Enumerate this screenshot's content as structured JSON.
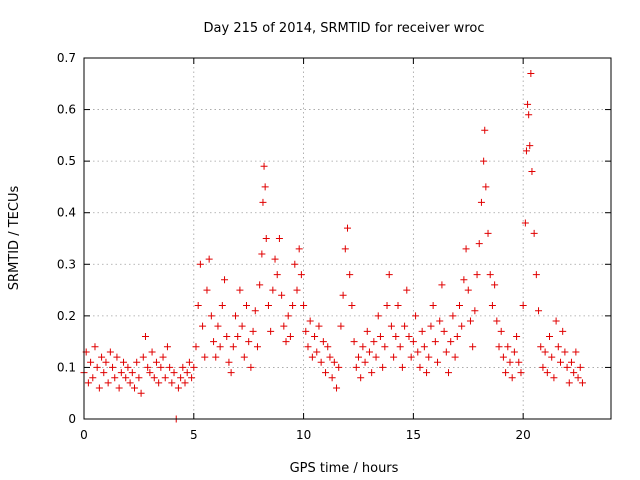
{
  "chart_data": {
    "type": "scatter",
    "title": "Day 215 of 2014, SRMTID for receiver wroc",
    "xlabel": "GPS time / hours",
    "ylabel": "SRMTID / TECUs",
    "xlim": [
      0,
      24
    ],
    "ylim": [
      0,
      0.7
    ],
    "xticks": [
      0,
      5,
      10,
      15,
      20
    ],
    "xtick_labels": [
      "0",
      "5",
      "10",
      "15",
      "20"
    ],
    "yticks": [
      0,
      0.1,
      0.2,
      0.3,
      0.4,
      0.5,
      0.6,
      0.7
    ],
    "ytick_labels": [
      "0",
      "0.1",
      "0.2",
      "0.3",
      "0.4",
      "0.5",
      "0.6",
      "0.7"
    ],
    "grid": true,
    "marker": "plus",
    "color": "#e00000",
    "series": [
      {
        "name": "SRMTID",
        "points": [
          [
            0.0,
            0.09
          ],
          [
            0.1,
            0.13
          ],
          [
            0.2,
            0.07
          ],
          [
            0.3,
            0.11
          ],
          [
            0.4,
            0.08
          ],
          [
            0.5,
            0.14
          ],
          [
            0.6,
            0.1
          ],
          [
            0.7,
            0.06
          ],
          [
            0.8,
            0.12
          ],
          [
            0.9,
            0.09
          ],
          [
            1.0,
            0.11
          ],
          [
            1.1,
            0.07
          ],
          [
            1.2,
            0.13
          ],
          [
            1.3,
            0.1
          ],
          [
            1.4,
            0.08
          ],
          [
            1.5,
            0.12
          ],
          [
            1.6,
            0.06
          ],
          [
            1.7,
            0.09
          ],
          [
            1.8,
            0.11
          ],
          [
            1.9,
            0.08
          ],
          [
            2.0,
            0.1
          ],
          [
            2.1,
            0.07
          ],
          [
            2.2,
            0.09
          ],
          [
            2.3,
            0.06
          ],
          [
            2.4,
            0.11
          ],
          [
            2.5,
            0.08
          ],
          [
            2.6,
            0.05
          ],
          [
            2.7,
            0.12
          ],
          [
            2.8,
            0.16
          ],
          [
            2.9,
            0.1
          ],
          [
            3.0,
            0.09
          ],
          [
            3.1,
            0.13
          ],
          [
            3.2,
            0.08
          ],
          [
            3.3,
            0.11
          ],
          [
            3.4,
            0.07
          ],
          [
            3.5,
            0.1
          ],
          [
            3.6,
            0.12
          ],
          [
            3.7,
            0.08
          ],
          [
            3.8,
            0.14
          ],
          [
            3.9,
            0.1
          ],
          [
            4.0,
            0.07
          ],
          [
            4.1,
            0.09
          ],
          [
            4.2,
            0.0
          ],
          [
            4.3,
            0.06
          ],
          [
            4.4,
            0.08
          ],
          [
            4.5,
            0.1
          ],
          [
            4.6,
            0.07
          ],
          [
            4.7,
            0.09
          ],
          [
            4.8,
            0.11
          ],
          [
            4.9,
            0.08
          ],
          [
            5.0,
            0.1
          ],
          [
            5.1,
            0.14
          ],
          [
            5.2,
            0.22
          ],
          [
            5.3,
            0.3
          ],
          [
            5.4,
            0.18
          ],
          [
            5.5,
            0.12
          ],
          [
            5.6,
            0.25
          ],
          [
            5.7,
            0.31
          ],
          [
            5.8,
            0.2
          ],
          [
            5.9,
            0.15
          ],
          [
            6.0,
            0.12
          ],
          [
            6.1,
            0.18
          ],
          [
            6.2,
            0.14
          ],
          [
            6.3,
            0.22
          ],
          [
            6.4,
            0.27
          ],
          [
            6.5,
            0.16
          ],
          [
            6.6,
            0.11
          ],
          [
            6.7,
            0.09
          ],
          [
            6.8,
            0.14
          ],
          [
            6.9,
            0.2
          ],
          [
            7.0,
            0.16
          ],
          [
            7.1,
            0.25
          ],
          [
            7.2,
            0.18
          ],
          [
            7.3,
            0.12
          ],
          [
            7.4,
            0.22
          ],
          [
            7.5,
            0.15
          ],
          [
            7.6,
            0.1
          ],
          [
            7.7,
            0.17
          ],
          [
            7.8,
            0.21
          ],
          [
            7.9,
            0.14
          ],
          [
            8.0,
            0.26
          ],
          [
            8.1,
            0.32
          ],
          [
            8.15,
            0.42
          ],
          [
            8.2,
            0.49
          ],
          [
            8.25,
            0.45
          ],
          [
            8.3,
            0.35
          ],
          [
            8.4,
            0.22
          ],
          [
            8.5,
            0.17
          ],
          [
            8.6,
            0.25
          ],
          [
            8.7,
            0.31
          ],
          [
            8.8,
            0.28
          ],
          [
            8.9,
            0.35
          ],
          [
            9.0,
            0.24
          ],
          [
            9.1,
            0.18
          ],
          [
            9.2,
            0.15
          ],
          [
            9.3,
            0.2
          ],
          [
            9.4,
            0.16
          ],
          [
            9.5,
            0.22
          ],
          [
            9.6,
            0.3
          ],
          [
            9.7,
            0.25
          ],
          [
            9.8,
            0.33
          ],
          [
            9.9,
            0.28
          ],
          [
            10.0,
            0.22
          ],
          [
            10.1,
            0.17
          ],
          [
            10.2,
            0.14
          ],
          [
            10.3,
            0.19
          ],
          [
            10.4,
            0.12
          ],
          [
            10.5,
            0.16
          ],
          [
            10.6,
            0.13
          ],
          [
            10.7,
            0.18
          ],
          [
            10.8,
            0.11
          ],
          [
            10.9,
            0.15
          ],
          [
            11.0,
            0.09
          ],
          [
            11.1,
            0.14
          ],
          [
            11.2,
            0.12
          ],
          [
            11.3,
            0.08
          ],
          [
            11.4,
            0.11
          ],
          [
            11.5,
            0.06
          ],
          [
            11.6,
            0.1
          ],
          [
            11.7,
            0.18
          ],
          [
            11.8,
            0.24
          ],
          [
            11.9,
            0.33
          ],
          [
            12.0,
            0.37
          ],
          [
            12.1,
            0.28
          ],
          [
            12.2,
            0.22
          ],
          [
            12.3,
            0.15
          ],
          [
            12.4,
            0.1
          ],
          [
            12.5,
            0.12
          ],
          [
            12.6,
            0.08
          ],
          [
            12.7,
            0.14
          ],
          [
            12.8,
            0.11
          ],
          [
            12.9,
            0.17
          ],
          [
            13.0,
            0.13
          ],
          [
            13.1,
            0.09
          ],
          [
            13.2,
            0.15
          ],
          [
            13.3,
            0.12
          ],
          [
            13.4,
            0.2
          ],
          [
            13.5,
            0.16
          ],
          [
            13.6,
            0.1
          ],
          [
            13.7,
            0.14
          ],
          [
            13.8,
            0.22
          ],
          [
            13.9,
            0.28
          ],
          [
            14.0,
            0.18
          ],
          [
            14.1,
            0.12
          ],
          [
            14.2,
            0.16
          ],
          [
            14.3,
            0.22
          ],
          [
            14.4,
            0.14
          ],
          [
            14.5,
            0.1
          ],
          [
            14.6,
            0.18
          ],
          [
            14.7,
            0.25
          ],
          [
            14.8,
            0.16
          ],
          [
            14.9,
            0.12
          ],
          [
            15.0,
            0.15
          ],
          [
            15.1,
            0.2
          ],
          [
            15.2,
            0.13
          ],
          [
            15.3,
            0.1
          ],
          [
            15.4,
            0.17
          ],
          [
            15.5,
            0.14
          ],
          [
            15.6,
            0.09
          ],
          [
            15.7,
            0.12
          ],
          [
            15.8,
            0.18
          ],
          [
            15.9,
            0.22
          ],
          [
            16.0,
            0.15
          ],
          [
            16.1,
            0.11
          ],
          [
            16.2,
            0.19
          ],
          [
            16.3,
            0.26
          ],
          [
            16.4,
            0.17
          ],
          [
            16.5,
            0.13
          ],
          [
            16.6,
            0.09
          ],
          [
            16.7,
            0.15
          ],
          [
            16.8,
            0.2
          ],
          [
            16.9,
            0.12
          ],
          [
            17.0,
            0.16
          ],
          [
            17.1,
            0.22
          ],
          [
            17.2,
            0.18
          ],
          [
            17.3,
            0.27
          ],
          [
            17.4,
            0.33
          ],
          [
            17.5,
            0.25
          ],
          [
            17.6,
            0.19
          ],
          [
            17.7,
            0.14
          ],
          [
            17.8,
            0.21
          ],
          [
            17.9,
            0.28
          ],
          [
            18.0,
            0.34
          ],
          [
            18.1,
            0.42
          ],
          [
            18.2,
            0.5
          ],
          [
            18.25,
            0.56
          ],
          [
            18.3,
            0.45
          ],
          [
            18.4,
            0.36
          ],
          [
            18.5,
            0.28
          ],
          [
            18.6,
            0.22
          ],
          [
            18.7,
            0.26
          ],
          [
            18.8,
            0.19
          ],
          [
            18.9,
            0.14
          ],
          [
            19.0,
            0.17
          ],
          [
            19.1,
            0.12
          ],
          [
            19.2,
            0.09
          ],
          [
            19.3,
            0.14
          ],
          [
            19.4,
            0.11
          ],
          [
            19.5,
            0.08
          ],
          [
            19.6,
            0.13
          ],
          [
            19.7,
            0.16
          ],
          [
            19.8,
            0.11
          ],
          [
            19.9,
            0.09
          ],
          [
            20.0,
            0.22
          ],
          [
            20.1,
            0.38
          ],
          [
            20.15,
            0.52
          ],
          [
            20.2,
            0.61
          ],
          [
            20.25,
            0.59
          ],
          [
            20.3,
            0.53
          ],
          [
            20.35,
            0.67
          ],
          [
            20.4,
            0.48
          ],
          [
            20.5,
            0.36
          ],
          [
            20.6,
            0.28
          ],
          [
            20.7,
            0.21
          ],
          [
            20.8,
            0.14
          ],
          [
            20.9,
            0.1
          ],
          [
            21.0,
            0.13
          ],
          [
            21.1,
            0.09
          ],
          [
            21.2,
            0.16
          ],
          [
            21.3,
            0.12
          ],
          [
            21.4,
            0.08
          ],
          [
            21.5,
            0.19
          ],
          [
            21.6,
            0.14
          ],
          [
            21.7,
            0.11
          ],
          [
            21.8,
            0.17
          ],
          [
            21.9,
            0.13
          ],
          [
            22.0,
            0.1
          ],
          [
            22.1,
            0.07
          ],
          [
            22.2,
            0.11
          ],
          [
            22.3,
            0.09
          ],
          [
            22.4,
            0.13
          ],
          [
            22.5,
            0.08
          ],
          [
            22.6,
            0.1
          ],
          [
            22.7,
            0.07
          ]
        ]
      }
    ]
  }
}
